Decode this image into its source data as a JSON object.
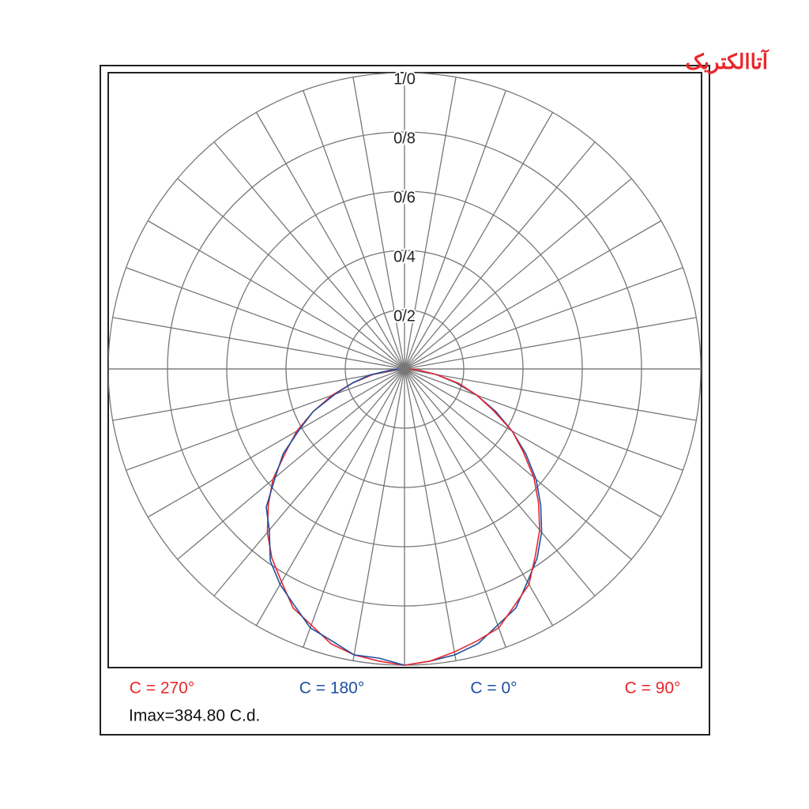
{
  "logo": "آتاالکتریک",
  "chart_data": {
    "type": "polar",
    "annotation": "Imax=384.80 C.d.",
    "angles": [
      0,
      5,
      10,
      15,
      20,
      25,
      30,
      35,
      40,
      45,
      50,
      55,
      60,
      65,
      70,
      75,
      80,
      85,
      90
    ],
    "rlim": [
      0,
      1
    ],
    "rticks": [
      {
        "value": 0.2,
        "label": "0/2"
      },
      {
        "value": 0.4,
        "label": "0/4"
      },
      {
        "value": 0.6,
        "label": "0/6"
      },
      {
        "value": 0.8,
        "label": "0/8"
      },
      {
        "value": 1.0,
        "label": "1/0"
      }
    ],
    "grid": true,
    "series": [
      {
        "name": "C = 270°",
        "color": "#e8262b",
        "side": "left",
        "values": [
          1.0,
          0.99,
          0.98,
          0.96,
          0.92,
          0.89,
          0.83,
          0.78,
          0.72,
          0.65,
          0.58,
          0.49,
          0.42,
          0.34,
          0.26,
          0.18,
          0.11,
          0.04,
          0.02
        ]
      },
      {
        "name": "C = 180°",
        "color": "#1f4fa0",
        "side": "left",
        "values": [
          1.0,
          0.98,
          0.98,
          0.95,
          0.93,
          0.88,
          0.84,
          0.79,
          0.71,
          0.66,
          0.57,
          0.5,
          0.41,
          0.34,
          0.25,
          0.18,
          0.12,
          0.05,
          0.02
        ]
      },
      {
        "name": "C = 0°",
        "color": "#1f4fa0",
        "side": "right",
        "values": [
          1.0,
          0.99,
          0.98,
          0.96,
          0.92,
          0.89,
          0.83,
          0.78,
          0.72,
          0.65,
          0.58,
          0.5,
          0.42,
          0.34,
          0.26,
          0.18,
          0.11,
          0.05,
          0.02
        ]
      },
      {
        "name": "C = 90°",
        "color": "#e8262b",
        "side": "right",
        "values": [
          1.0,
          0.99,
          0.97,
          0.95,
          0.93,
          0.88,
          0.84,
          0.77,
          0.71,
          0.64,
          0.57,
          0.49,
          0.42,
          0.33,
          0.26,
          0.19,
          0.11,
          0.05,
          0.02
        ]
      }
    ]
  }
}
